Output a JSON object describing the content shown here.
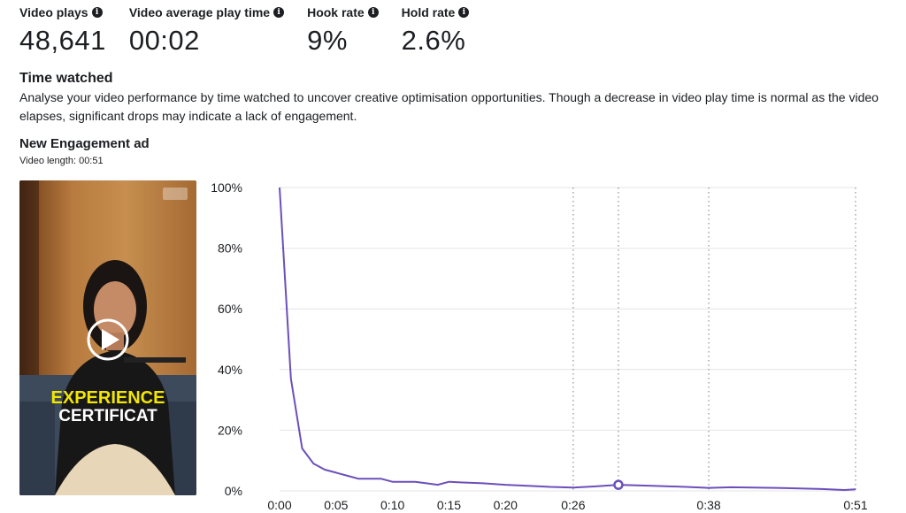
{
  "metrics": [
    {
      "label": "Video plays",
      "value": "48,641",
      "icon": "info-icon"
    },
    {
      "label": "Video average play time",
      "value": "00:02",
      "icon": "info-icon"
    },
    {
      "label": "Hook rate",
      "value": "9%",
      "icon": "info-icon"
    },
    {
      "label": "Hold rate",
      "value": "2.6%",
      "icon": "info-icon"
    }
  ],
  "section": {
    "title": "Time watched",
    "description": "Analyse your video performance by time watched to uncover creative optimisation opportunities. Though a decrease in video play time is normal as the video elapses, significant drops may indicate a lack of engagement."
  },
  "ad": {
    "title": "New Engagement ad",
    "length_text": "Video length: 00:51",
    "thumbnail_text_line1": "EXPERIENCE",
    "thumbnail_text_line2": "CERTIFICAT",
    "play_icon": "play-icon"
  },
  "chart_data": {
    "type": "line",
    "x_unit": "seconds",
    "xlim": [
      0,
      51
    ],
    "ylim": [
      0,
      100
    ],
    "x_ticks": [
      {
        "t": 0,
        "label": "0:00"
      },
      {
        "t": 5,
        "label": "0:05"
      },
      {
        "t": 10,
        "label": "0:10"
      },
      {
        "t": 15,
        "label": "0:15"
      },
      {
        "t": 20,
        "label": "0:20"
      },
      {
        "t": 26,
        "label": "0:26"
      },
      {
        "t": 38,
        "label": "0:38"
      },
      {
        "t": 51,
        "label": "0:51"
      }
    ],
    "y_ticks": [
      {
        "v": 0,
        "label": "0%"
      },
      {
        "v": 20,
        "label": "20%"
      },
      {
        "v": 40,
        "label": "40%"
      },
      {
        "v": 60,
        "label": "60%"
      },
      {
        "v": 80,
        "label": "80%"
      },
      {
        "v": 100,
        "label": "100%"
      }
    ],
    "dotted_lines_at": [
      26,
      30,
      38,
      51
    ],
    "series": [
      {
        "color": "#6b4fbb",
        "points": [
          [
            0,
            100
          ],
          [
            1,
            37
          ],
          [
            2,
            14
          ],
          [
            3,
            9
          ],
          [
            4,
            7
          ],
          [
            5,
            6
          ],
          [
            6,
            5
          ],
          [
            7,
            4
          ],
          [
            8,
            4
          ],
          [
            9,
            4
          ],
          [
            10,
            3
          ],
          [
            11,
            3
          ],
          [
            12,
            3
          ],
          [
            13,
            2.5
          ],
          [
            14,
            2
          ],
          [
            15,
            3
          ],
          [
            16,
            2.8
          ],
          [
            18,
            2.5
          ],
          [
            20,
            2
          ],
          [
            22,
            1.7
          ],
          [
            24,
            1.3
          ],
          [
            26,
            1.1
          ],
          [
            28,
            1.5
          ],
          [
            30,
            2
          ],
          [
            33,
            1.7
          ],
          [
            36,
            1.3
          ],
          [
            38,
            1
          ],
          [
            40,
            1.2
          ],
          [
            44,
            1
          ],
          [
            48,
            0.6
          ],
          [
            50,
            0.3
          ],
          [
            51,
            0.5
          ]
        ]
      }
    ],
    "highlight_point": [
      30,
      2
    ]
  }
}
